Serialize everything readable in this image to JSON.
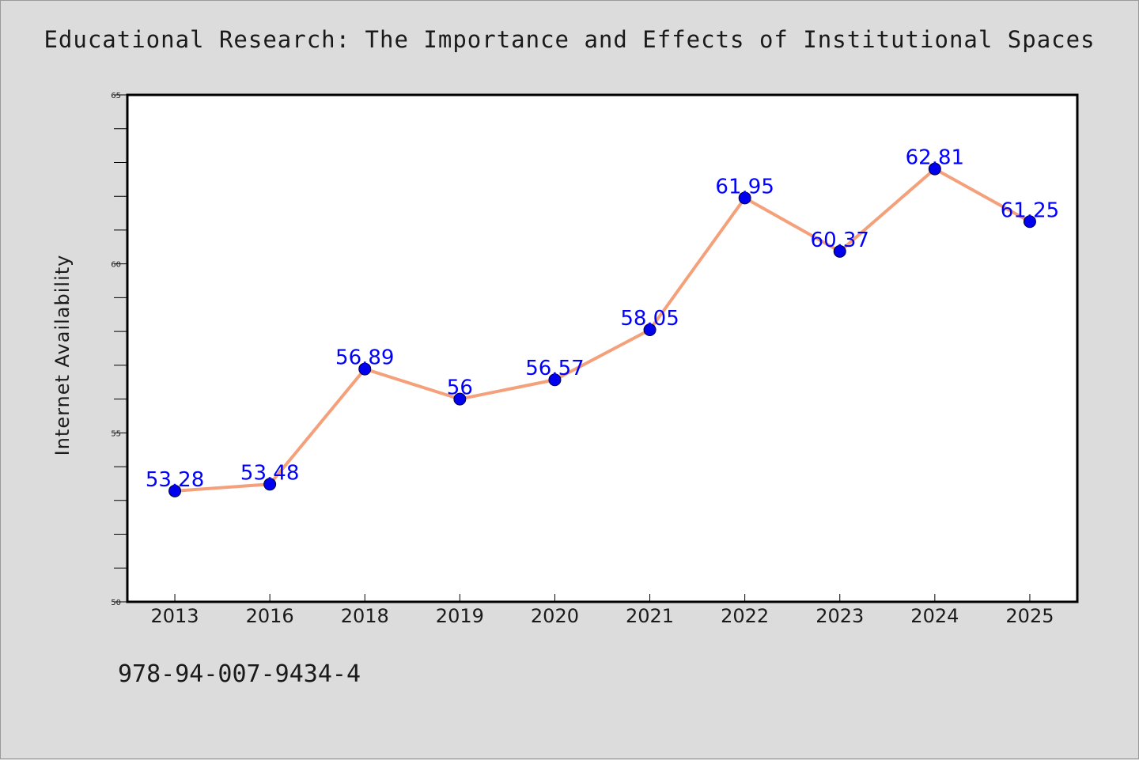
{
  "header": {
    "title": "Educational Research: The Importance and Effects of Institutional Spaces"
  },
  "footer": {
    "identifier": "978-94-007-9434-4"
  },
  "colors": {
    "background": "#dcdcdc",
    "plot_background": "#ffffff",
    "line": "#f4a07a",
    "marker": "#0000ee",
    "data_label": "#0000ff"
  },
  "chart_data": {
    "type": "line",
    "title": "Educational Research: The Importance and Effects of Institutional Spaces",
    "xlabel": "",
    "ylabel": "Internet Availability",
    "categories": [
      "2013",
      "2016",
      "2018",
      "2019",
      "2020",
      "2021",
      "2022",
      "2023",
      "2024",
      "2025"
    ],
    "series": [
      {
        "values": [
          53.28,
          53.48,
          56.89,
          56,
          56.57,
          58.05,
          61.95,
          60.37,
          62.81,
          61.25
        ]
      }
    ],
    "data_labels": [
      "53.28",
      "53.48",
      "56.89",
      "56",
      "56.57",
      "58.05",
      "61.95",
      "60.37",
      "62.81",
      "61.25"
    ],
    "ylim": [
      50,
      65
    ],
    "yticks": [
      50,
      55,
      60,
      65
    ],
    "ytick_labels": [
      "50",
      "55",
      "60",
      "65"
    ],
    "minor_tick_step": 1,
    "grid": false,
    "legend": "none"
  }
}
